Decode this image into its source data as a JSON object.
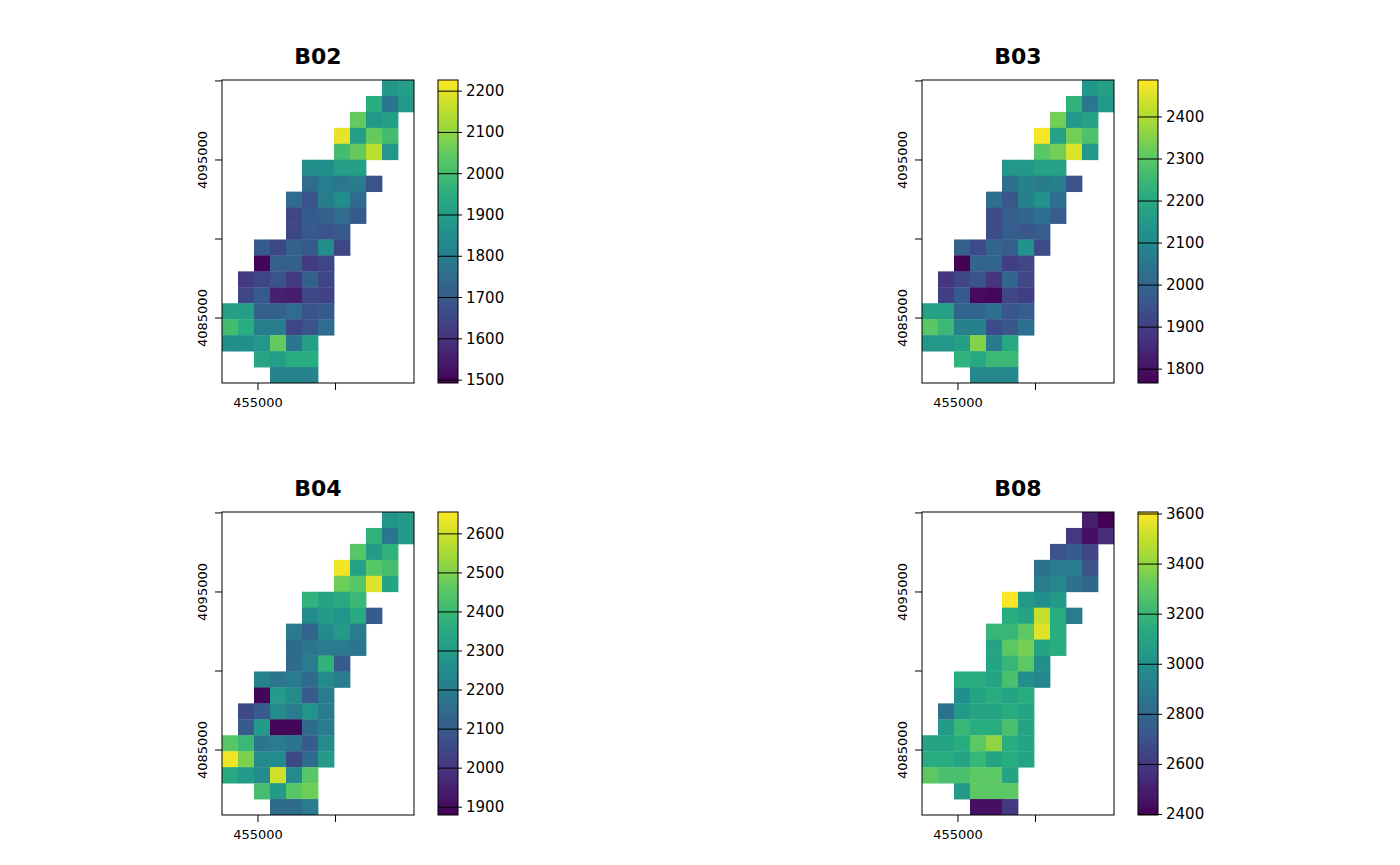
{
  "chart_data": [
    {
      "type": "heatmap",
      "title": "B02",
      "xlim": [
        452680,
        465060
      ],
      "ylim": [
        4080890,
        4100060
      ],
      "xticks": [
        455000,
        {
          "value": 460000,
          "label": null
        }
      ],
      "yticks": [
        4085000,
        {
          "value": 4090000,
          "label": null
        },
        4095000,
        {
          "value": 4100000,
          "label": null
        }
      ],
      "colorbar": {
        "range": [
          1493,
          2227
        ],
        "ticks": [
          1500,
          1600,
          1700,
          1800,
          1900,
          2000,
          2100,
          2200
        ]
      },
      "cells": [
        [
          null,
          null,
          null,
          null,
          null,
          null,
          null,
          null,
          null,
          null,
          1880,
          1900
        ],
        [
          null,
          null,
          null,
          null,
          null,
          null,
          null,
          null,
          null,
          1950,
          1780,
          1880
        ],
        [
          null,
          null,
          null,
          null,
          null,
          null,
          null,
          null,
          2050,
          1880,
          1900,
          null
        ],
        [
          null,
          null,
          null,
          null,
          null,
          null,
          null,
          2200,
          1900,
          2050,
          2000,
          null
        ],
        [
          null,
          null,
          null,
          null,
          null,
          null,
          null,
          2000,
          2050,
          2150,
          1880,
          null
        ],
        [
          null,
          null,
          null,
          null,
          null,
          1850,
          1850,
          1900,
          1900,
          null,
          null,
          null
        ],
        [
          null,
          null,
          null,
          null,
          null,
          1750,
          1800,
          1780,
          1800,
          1680,
          null,
          null
        ],
        [
          null,
          null,
          null,
          null,
          1750,
          1680,
          1800,
          1850,
          1750,
          null,
          null,
          null
        ],
        [
          null,
          null,
          null,
          null,
          1650,
          1700,
          1720,
          1750,
          1700,
          null,
          null,
          null
        ],
        [
          null,
          null,
          null,
          null,
          1650,
          1700,
          1680,
          1700,
          null,
          null,
          null,
          null
        ],
        [
          null,
          null,
          1700,
          1650,
          1720,
          1700,
          1850,
          1650,
          null,
          null,
          null,
          null
        ],
        [
          null,
          null,
          1500,
          1720,
          1720,
          1620,
          1650,
          null,
          null,
          null,
          null,
          null
        ],
        [
          null,
          1620,
          1650,
          1680,
          1620,
          1720,
          1650,
          null,
          null,
          null,
          null,
          null
        ],
        [
          null,
          1650,
          1700,
          1560,
          1550,
          1650,
          1640,
          null,
          null,
          null,
          null,
          null
        ],
        [
          1900,
          1900,
          1720,
          1720,
          1750,
          1680,
          1700,
          null,
          null,
          null,
          null,
          null
        ],
        [
          2000,
          1950,
          1800,
          1800,
          1650,
          1680,
          1750,
          null,
          null,
          null,
          null,
          null
        ],
        [
          1850,
          1850,
          1880,
          2050,
          1780,
          1900,
          null,
          null,
          null,
          null,
          null,
          null
        ],
        [
          null,
          null,
          1920,
          1900,
          1950,
          1950,
          null,
          null,
          null,
          null,
          null,
          null
        ],
        [
          null,
          null,
          null,
          1820,
          1820,
          1820,
          null,
          null,
          null,
          null,
          null,
          null
        ]
      ]
    },
    {
      "type": "heatmap",
      "title": "B03",
      "xlim": [
        452680,
        465060
      ],
      "ylim": [
        4080890,
        4100060
      ],
      "xticks": [
        455000,
        {
          "value": 460000,
          "label": null
        }
      ],
      "yticks": [
        4085000,
        {
          "value": 4090000,
          "label": null
        },
        4095000,
        {
          "value": 4100000,
          "label": null
        }
      ],
      "colorbar": {
        "range": [
          1767,
          2488
        ],
        "ticks": [
          1800,
          1900,
          2000,
          2100,
          2200,
          2300,
          2400
        ]
      },
      "cells": [
        [
          null,
          null,
          null,
          null,
          null,
          null,
          null,
          null,
          null,
          null,
          2150,
          2170
        ],
        [
          null,
          null,
          null,
          null,
          null,
          null,
          null,
          null,
          null,
          2230,
          2050,
          2150
        ],
        [
          null,
          null,
          null,
          null,
          null,
          null,
          null,
          null,
          2330,
          2150,
          2180,
          null
        ],
        [
          null,
          null,
          null,
          null,
          null,
          null,
          null,
          2480,
          2180,
          2330,
          2280,
          null
        ],
        [
          null,
          null,
          null,
          null,
          null,
          null,
          null,
          2300,
          2330,
          2450,
          2150,
          null
        ],
        [
          null,
          null,
          null,
          null,
          null,
          2150,
          2150,
          2180,
          2180,
          null,
          null,
          null
        ],
        [
          null,
          null,
          null,
          null,
          null,
          2030,
          2080,
          2060,
          2080,
          1950,
          null,
          null
        ],
        [
          null,
          null,
          null,
          null,
          2030,
          1960,
          2080,
          2130,
          2030,
          null,
          null,
          null
        ],
        [
          null,
          null,
          null,
          null,
          1930,
          1980,
          2000,
          2030,
          1980,
          null,
          null,
          null
        ],
        [
          null,
          null,
          null,
          null,
          1930,
          1980,
          1960,
          1980,
          null,
          null,
          null,
          null
        ],
        [
          null,
          null,
          1990,
          1930,
          2000,
          1980,
          2130,
          1930,
          null,
          null,
          null,
          null
        ],
        [
          null,
          null,
          1770,
          2000,
          2000,
          1900,
          1920,
          null,
          null,
          null,
          null,
          null
        ],
        [
          null,
          1880,
          1920,
          1950,
          1880,
          2000,
          1920,
          null,
          null,
          null,
          null,
          null
        ],
        [
          null,
          1900,
          1970,
          1790,
          1780,
          1920,
          1900,
          null,
          null,
          null,
          null,
          null
        ],
        [
          2180,
          2180,
          2000,
          2000,
          2030,
          1960,
          1980,
          null,
          null,
          null,
          null,
          null
        ],
        [
          2300,
          2250,
          2080,
          2080,
          1930,
          1960,
          2030,
          null,
          null,
          null,
          null,
          null
        ],
        [
          2150,
          2150,
          2170,
          2350,
          2060,
          2200,
          null,
          null,
          null,
          null,
          null,
          null
        ],
        [
          null,
          null,
          2230,
          2200,
          2250,
          2250,
          null,
          null,
          null,
          null,
          null,
          null
        ],
        [
          null,
          null,
          null,
          2100,
          2100,
          2100,
          null,
          null,
          null,
          null,
          null,
          null
        ]
      ]
    },
    {
      "type": "heatmap",
      "title": "B04",
      "xlim": [
        452680,
        465060
      ],
      "ylim": [
        4080890,
        4100060
      ],
      "xticks": [
        455000,
        {
          "value": 460000,
          "label": null
        }
      ],
      "yticks": [
        4085000,
        {
          "value": 4090000,
          "label": null
        },
        4095000,
        {
          "value": 4100000,
          "label": null
        }
      ],
      "colorbar": {
        "range": [
          1880,
          2656
        ],
        "ticks": [
          1900,
          2000,
          2100,
          2200,
          2300,
          2400,
          2500,
          2600
        ]
      },
      "cells": [
        [
          null,
          null,
          null,
          null,
          null,
          null,
          null,
          null,
          null,
          null,
          2280,
          2300
        ],
        [
          null,
          null,
          null,
          null,
          null,
          null,
          null,
          null,
          null,
          2380,
          2180,
          2300
        ],
        [
          null,
          null,
          null,
          null,
          null,
          null,
          null,
          null,
          2450,
          2300,
          2380,
          null
        ],
        [
          null,
          null,
          null,
          null,
          null,
          null,
          null,
          2640,
          2320,
          2450,
          2420,
          null
        ],
        [
          null,
          null,
          null,
          null,
          null,
          null,
          null,
          2480,
          2450,
          2620,
          2330,
          null
        ],
        [
          null,
          null,
          null,
          null,
          null,
          2380,
          2330,
          2350,
          2400,
          null,
          null,
          null
        ],
        [
          null,
          null,
          null,
          null,
          null,
          2250,
          2300,
          2280,
          2350,
          2100,
          null,
          null
        ],
        [
          null,
          null,
          null,
          null,
          2200,
          2130,
          2250,
          2300,
          2200,
          null,
          null,
          null
        ],
        [
          null,
          null,
          null,
          null,
          2150,
          2180,
          2200,
          2200,
          2180,
          null,
          null,
          null
        ],
        [
          null,
          null,
          null,
          null,
          2150,
          2200,
          2380,
          2100,
          null,
          null,
          null,
          null
        ],
        [
          null,
          null,
          2220,
          2180,
          2200,
          2150,
          2250,
          2200,
          null,
          null,
          null,
          null
        ],
        [
          null,
          null,
          1890,
          2300,
          2250,
          2100,
          2200,
          null,
          null,
          null,
          null,
          null
        ],
        [
          null,
          2050,
          2100,
          2250,
          2200,
          2280,
          2200,
          null,
          null,
          null,
          null,
          null
        ],
        [
          null,
          2100,
          2300,
          1890,
          1890,
          2150,
          2200,
          null,
          null,
          null,
          null,
          null
        ],
        [
          2450,
          2400,
          2180,
          2200,
          2180,
          2100,
          2250,
          null,
          null,
          null,
          null,
          null
        ],
        [
          2640,
          2500,
          2250,
          2250,
          2050,
          2150,
          2300,
          null,
          null,
          null,
          null,
          null
        ],
        [
          2350,
          2300,
          2250,
          2600,
          2250,
          2450,
          null,
          null,
          null,
          null,
          null,
          null
        ],
        [
          null,
          null,
          2420,
          2300,
          2450,
          2480,
          null,
          null,
          null,
          null,
          null,
          null
        ],
        [
          null,
          null,
          null,
          2150,
          2150,
          2200,
          null,
          null,
          null,
          null,
          null,
          null
        ]
      ]
    },
    {
      "type": "heatmap",
      "title": "B08",
      "xlim": [
        452680,
        465060
      ],
      "ylim": [
        4080890,
        4100060
      ],
      "xticks": [
        455000,
        {
          "value": 460000,
          "label": null
        }
      ],
      "yticks": [
        4085000,
        {
          "value": 4090000,
          "label": null
        },
        4095000,
        {
          "value": 4100000,
          "label": null
        }
      ],
      "colorbar": {
        "range": [
          2398,
          3608
        ],
        "ticks": [
          2400,
          2600,
          2800,
          3000,
          3200,
          3400,
          3600
        ]
      },
      "cells": [
        [
          null,
          null,
          null,
          null,
          null,
          null,
          null,
          null,
          null,
          null,
          2500,
          2400
        ],
        [
          null,
          null,
          null,
          null,
          null,
          null,
          null,
          null,
          null,
          2600,
          2450,
          2550
        ],
        [
          null,
          null,
          null,
          null,
          null,
          null,
          null,
          null,
          2700,
          2750,
          2650,
          null
        ],
        [
          null,
          null,
          null,
          null,
          null,
          null,
          null,
          2850,
          2900,
          2900,
          2700,
          null
        ],
        [
          null,
          null,
          null,
          null,
          null,
          null,
          null,
          2900,
          2950,
          2850,
          2800,
          null
        ],
        [
          null,
          null,
          null,
          null,
          null,
          3600,
          3050,
          3000,
          3050,
          null,
          null,
          null
        ],
        [
          null,
          null,
          null,
          null,
          null,
          3150,
          3100,
          3500,
          3150,
          2900,
          null,
          null
        ],
        [
          null,
          null,
          null,
          null,
          3200,
          3200,
          3300,
          3550,
          3150,
          null,
          null,
          null
        ],
        [
          null,
          null,
          null,
          null,
          3100,
          3300,
          3350,
          3100,
          3150,
          null,
          null,
          null
        ],
        [
          null,
          null,
          null,
          null,
          3100,
          3200,
          3300,
          3000,
          null,
          null,
          null,
          null
        ],
        [
          null,
          null,
          3150,
          3150,
          3100,
          3250,
          3000,
          2950,
          null,
          null,
          null,
          null
        ],
        [
          null,
          null,
          3000,
          3100,
          3150,
          3100,
          3150,
          null,
          null,
          null,
          null,
          null
        ],
        [
          null,
          2850,
          3050,
          3100,
          3100,
          3150,
          3100,
          null,
          null,
          null,
          null,
          null
        ],
        [
          null,
          3050,
          3200,
          3150,
          3150,
          3250,
          3100,
          null,
          null,
          null,
          null,
          null
        ],
        [
          3100,
          3100,
          3150,
          3300,
          3400,
          3150,
          3100,
          null,
          null,
          null,
          null,
          null
        ],
        [
          3150,
          3150,
          3100,
          3200,
          3100,
          3150,
          3100,
          null,
          null,
          null,
          null,
          null
        ],
        [
          3300,
          3250,
          3250,
          3300,
          3300,
          3100,
          null,
          null,
          null,
          null,
          null,
          null
        ],
        [
          null,
          null,
          3050,
          3300,
          3300,
          3300,
          null,
          null,
          null,
          null,
          null,
          null
        ],
        [
          null,
          null,
          null,
          2450,
          2450,
          2600,
          null,
          null,
          null,
          null,
          null,
          null
        ]
      ]
    }
  ]
}
